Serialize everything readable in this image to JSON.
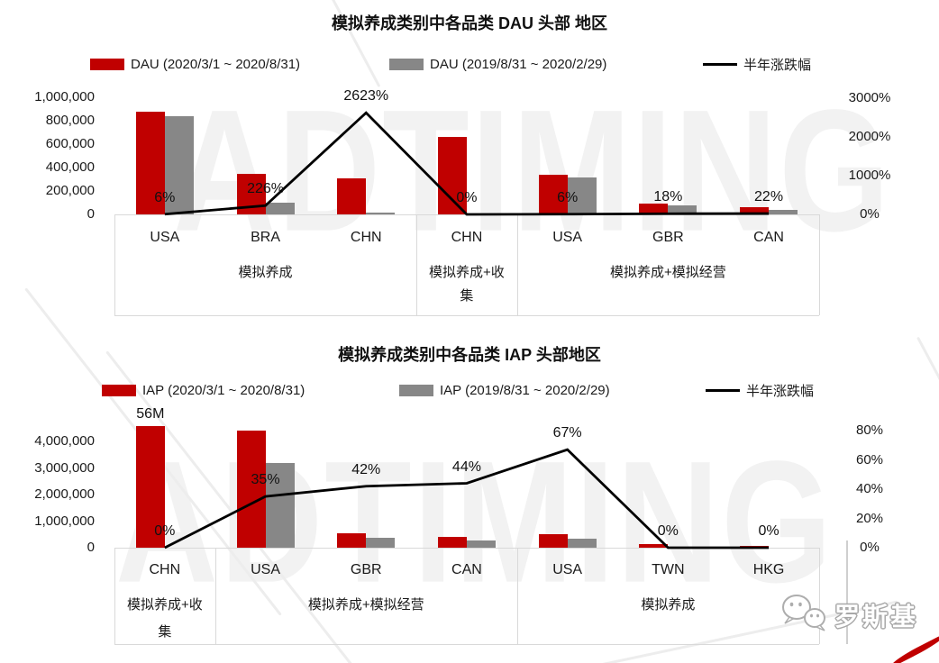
{
  "watermark": {
    "brand_text": "ADTIMING",
    "logo_text": "罗斯基"
  },
  "colors": {
    "bar_current": "#C00000",
    "bar_previous": "#878787",
    "change_line": "#000000",
    "axis_border": "#D9D9D9",
    "watermark_text": "#F2F2F2",
    "red_swoosh": "#C00000"
  },
  "charts": [
    {
      "title": "模拟养成类别中各品类 DAU 头部 地区",
      "legend": [
        {
          "label": "DAU (2020/3/1 ~ 2020/8/31)"
        },
        {
          "label": "DAU (2019/8/31 ~ 2020/2/29)"
        },
        {
          "label": "半年涨跌幅"
        }
      ],
      "chart_data": {
        "type": "bar+line",
        "categories": [
          "USA",
          "BRA",
          "CHN",
          "CHN",
          "USA",
          "GBR",
          "CAN"
        ],
        "groups": [
          {
            "label": "模拟养成",
            "span": 3
          },
          {
            "label": "模拟养成+收集",
            "span": 1,
            "wrap": [
              "模拟养成+收",
              "集"
            ]
          },
          {
            "label": "模拟养成+模拟经营",
            "span": 3
          }
        ],
        "series": [
          {
            "name": "DAU (2020/3/1 ~ 2020/8/31)",
            "type": "bar",
            "color": "#C00000",
            "values": [
              875000,
              345000,
              308000,
              662000,
              338000,
              95000,
              60000
            ]
          },
          {
            "name": "DAU (2019/8/31 ~ 2020/2/29)",
            "type": "bar",
            "color": "#878787",
            "values": [
              835000,
              100000,
              12000,
              0,
              315000,
              78000,
              42000
            ]
          },
          {
            "name": "半年涨跌幅",
            "type": "line",
            "color": "#000000",
            "axis": "right",
            "values": [
              6,
              226,
              2623,
              0,
              6,
              18,
              22
            ],
            "labels": [
              "6%",
              "226%",
              "2623%",
              "0%",
              "6%",
              "18%",
              "22%"
            ]
          }
        ],
        "left_axis": {
          "min": 0,
          "max": 1000000,
          "ticks": [
            "1,000,000",
            "800,000",
            "600,000",
            "400,000",
            "200,000",
            "0"
          ],
          "tick_values": [
            1000000,
            800000,
            600000,
            400000,
            200000,
            0
          ]
        },
        "right_axis": {
          "min": 0,
          "max": 3000,
          "ticks": [
            "3000%",
            "2000%",
            "1000%",
            "0%"
          ],
          "tick_values": [
            3000,
            2000,
            1000,
            0
          ]
        },
        "grid": false,
        "legend_position": "top"
      }
    },
    {
      "title": "模拟养成类别中各品类 IAP 头部地区",
      "legend": [
        {
          "label": "IAP (2020/3/1 ~ 2020/8/31)"
        },
        {
          "label": "IAP (2019/8/31 ~ 2020/2/29)"
        },
        {
          "label": "半年涨跌幅"
        }
      ],
      "chart_data": {
        "type": "bar+line",
        "categories": [
          "CHN",
          "USA",
          "GBR",
          "CAN",
          "USA",
          "TWN",
          "HKG"
        ],
        "groups": [
          {
            "label": "模拟养成+收集",
            "span": 1,
            "wrap": [
              "模拟养成+收",
              "集"
            ]
          },
          {
            "label": "模拟养成+模拟经营",
            "span": 3
          },
          {
            "label": "模拟养成",
            "span": 3
          }
        ],
        "series": [
          {
            "name": "IAP (2020/3/1 ~ 2020/8/31)",
            "type": "bar",
            "color": "#C00000",
            "values": [
              56000000,
              4400000,
              550000,
              420000,
              520000,
              130000,
              60000
            ],
            "bar_labels": [
              "56M",
              "",
              "",
              "",
              "",
              "",
              ""
            ]
          },
          {
            "name": "IAP (2019/8/31 ~ 2020/2/29)",
            "type": "bar",
            "color": "#878787",
            "values": [
              0,
              3200000,
              380000,
              280000,
              350000,
              0,
              0
            ]
          },
          {
            "name": "半年涨跌幅",
            "type": "line",
            "color": "#000000",
            "axis": "right",
            "values": [
              0,
              35,
              42,
              44,
              67,
              0,
              0
            ],
            "labels": [
              "0%",
              "35%",
              "42%",
              "44%",
              "67%",
              "0%",
              "0%"
            ]
          }
        ],
        "left_axis": {
          "min": 0,
          "max": 4000000,
          "ticks": [
            "4,000,000",
            "3,000,000",
            "2,000,000",
            "1,000,000",
            "0"
          ],
          "tick_values": [
            4000000,
            3000000,
            2000000,
            1000000,
            0
          ]
        },
        "right_axis": {
          "min": 0,
          "max": 80,
          "ticks": [
            "80%",
            "60%",
            "40%",
            "20%",
            "0%"
          ],
          "tick_values": [
            80,
            60,
            40,
            20,
            0
          ]
        },
        "grid": false,
        "legend_position": "top"
      }
    }
  ]
}
